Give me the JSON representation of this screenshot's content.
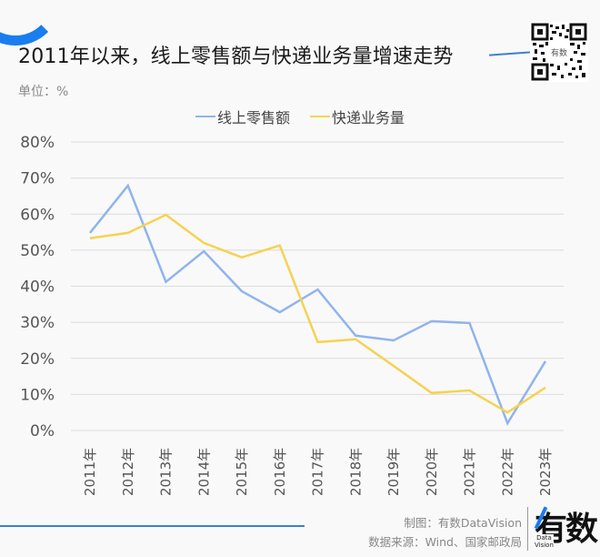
{
  "header": {
    "title": "2011年以来，线上零售额与快递业务量增速走势",
    "unit": "单位：%"
  },
  "legend": [
    {
      "label": "线上零售额",
      "color": "#8fb4ee"
    },
    {
      "label": "快递业务量",
      "color": "#f5d252"
    }
  ],
  "footer": {
    "credit_line": "制图：有数DataVision",
    "source_line": "数据来源：Wind、国家邮政局",
    "logo_text": "有数",
    "logo_sub1": "Data",
    "logo_sub2": "Vision"
  },
  "colors": {
    "accent": "#1a7df0",
    "line_blue": "#8fb4ee",
    "line_yellow": "#f5d252",
    "grid": "#dcdcdc",
    "background": "#f9f9f9"
  },
  "chart_data": {
    "type": "line",
    "title": "2011年以来，线上零售额与快递业务量增速走势",
    "xlabel": "",
    "ylabel": "单位：%",
    "categories": [
      "2011年",
      "2012年",
      "2013年",
      "2014年",
      "2015年",
      "2016年",
      "2017年",
      "2018年",
      "2019年",
      "2020年",
      "2021年",
      "2022年",
      "2023年"
    ],
    "series": [
      {
        "name": "线上零售额",
        "color": "#8fb4ee",
        "values": [
          54.8,
          67.9,
          41.2,
          49.7,
          38.6,
          32.8,
          39.1,
          26.3,
          25.0,
          30.3,
          29.8,
          2.0,
          19.2
        ]
      },
      {
        "name": "快递业务量",
        "color": "#f5d252",
        "values": [
          53.3,
          54.8,
          59.8,
          52.0,
          48.0,
          51.3,
          24.5,
          25.3,
          17.9,
          10.4,
          11.1,
          5.0,
          11.9
        ]
      }
    ],
    "yticks": [
      "0%",
      "10%",
      "20%",
      "30%",
      "40%",
      "50%",
      "60%",
      "70%",
      "80%"
    ],
    "ylim": [
      0,
      80
    ],
    "grid": true,
    "legend_position": "top"
  }
}
